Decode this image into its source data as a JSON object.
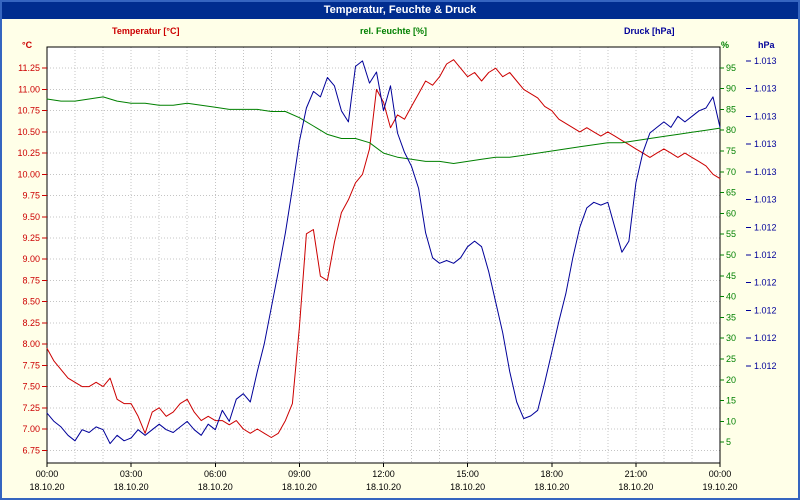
{
  "window": {
    "title": "Temperatur, Feuchte & Druck"
  },
  "colors": {
    "temperature": "#cc0000",
    "humidity": "#008000",
    "pressure": "#000099",
    "background": "#ffffe8",
    "titlebar": "#002d8f",
    "frame": "#3565c0",
    "grid": "#c4c4c4",
    "plot_border": "#000000",
    "axis_text": "#000000"
  },
  "chart_data": {
    "type": "line",
    "title": "Temperatur, Feuchte & Druck",
    "x_axis": {
      "span_hours": 24,
      "ticks": [
        {
          "t": 0,
          "time": "00:00",
          "date": "18.10.20"
        },
        {
          "t": 3,
          "time": "03:00",
          "date": "18.10.20"
        },
        {
          "t": 6,
          "time": "06:00",
          "date": "18.10.20"
        },
        {
          "t": 9,
          "time": "09:00",
          "date": "18.10.20"
        },
        {
          "t": 12,
          "time": "12:00",
          "date": "18.10.20"
        },
        {
          "t": 15,
          "time": "15:00",
          "date": "18.10.20"
        },
        {
          "t": 18,
          "time": "18:00",
          "date": "18.10.20"
        },
        {
          "t": 21,
          "time": "21:00",
          "date": "18.10.20"
        },
        {
          "t": 24,
          "time": "00:00",
          "date": "19.10.20"
        }
      ]
    },
    "axes": {
      "temperature": {
        "unit": "°C",
        "color": "#cc0000",
        "min": 6.6,
        "max": 11.5,
        "tick_labels": [
          "11.25",
          "11.00",
          "10.75",
          "10.50",
          "10.25",
          "10.00",
          "9.75",
          "9.50",
          "9.25",
          "9.00",
          "8.75",
          "8.50",
          "8.25",
          "8.00",
          "7.75",
          "7.50",
          "7.25",
          "7.00",
          "6.75"
        ]
      },
      "humidity": {
        "unit": "%",
        "color": "#008000",
        "min": 0,
        "max": 100,
        "tick_labels": [
          "95",
          "90",
          "85",
          "80",
          "75",
          "70",
          "65",
          "60",
          "55",
          "50",
          "45",
          "40",
          "35",
          "30",
          "25",
          "20",
          "15",
          "10",
          "5"
        ]
      },
      "pressure": {
        "unit": "hPa",
        "color": "#000099",
        "min": 1012.0,
        "max": 1013.5,
        "ticks": [
          {
            "value": 1013.45,
            "label": "1.013"
          },
          {
            "value": 1013.35,
            "label": "1.013"
          },
          {
            "value": 1013.25,
            "label": "1.013"
          },
          {
            "value": 1013.15,
            "label": "1.013"
          },
          {
            "value": 1013.05,
            "label": "1.013"
          },
          {
            "value": 1012.95,
            "label": "1.013"
          },
          {
            "value": 1012.85,
            "label": "1.012"
          },
          {
            "value": 1012.75,
            "label": "1.012"
          },
          {
            "value": 1012.65,
            "label": "1.012"
          },
          {
            "value": 1012.55,
            "label": "1.012"
          },
          {
            "value": 1012.45,
            "label": "1.012"
          },
          {
            "value": 1012.35,
            "label": "1.012"
          }
        ]
      }
    },
    "series": [
      {
        "id": "temperature",
        "name": "Temperatur [°C]",
        "axis": "temperature",
        "color": "#cc0000",
        "t_start": 0,
        "t_step": 0.25,
        "values": [
          7.95,
          7.8,
          7.7,
          7.6,
          7.55,
          7.5,
          7.5,
          7.55,
          7.5,
          7.6,
          7.35,
          7.3,
          7.3,
          7.15,
          6.95,
          7.2,
          7.25,
          7.15,
          7.2,
          7.3,
          7.35,
          7.2,
          7.1,
          7.15,
          7.1,
          7.1,
          7.05,
          7.1,
          7.0,
          6.95,
          7.0,
          6.95,
          6.9,
          6.95,
          7.1,
          7.3,
          8.2,
          9.3,
          9.35,
          8.8,
          8.75,
          9.2,
          9.55,
          9.7,
          9.9,
          10.0,
          10.3,
          11.0,
          10.85,
          10.55,
          10.7,
          10.65,
          10.8,
          10.95,
          11.1,
          11.05,
          11.15,
          11.3,
          11.35,
          11.25,
          11.15,
          11.2,
          11.1,
          11.2,
          11.25,
          11.15,
          11.2,
          11.1,
          11.0,
          10.95,
          10.9,
          10.8,
          10.75,
          10.65,
          10.6,
          10.55,
          10.5,
          10.55,
          10.5,
          10.45,
          10.5,
          10.45,
          10.4,
          10.35,
          10.3,
          10.25,
          10.2,
          10.25,
          10.3,
          10.25,
          10.2,
          10.25,
          10.2,
          10.15,
          10.1,
          10.0,
          9.95
        ]
      },
      {
        "id": "humidity",
        "name": "rel. Feuchte [%]",
        "axis": "humidity",
        "color": "#008000",
        "t_start": 0,
        "t_step": 0.5,
        "values": [
          87.5,
          87,
          87,
          87.5,
          88,
          87,
          86.5,
          86.5,
          86,
          86,
          86.5,
          86,
          85.5,
          85,
          85,
          85,
          84.5,
          84.5,
          83,
          81,
          79,
          78,
          78,
          77,
          74.5,
          73.5,
          73,
          72.5,
          72.5,
          72,
          72.5,
          73,
          73.5,
          73.5,
          74,
          74.5,
          75,
          75.5,
          76,
          76.5,
          77,
          77,
          77.5,
          78,
          78.5,
          79,
          79.5,
          80,
          80.5
        ]
      },
      {
        "id": "pressure",
        "name": "Druck [hPa]",
        "axis": "pressure",
        "color": "#000099",
        "t_start": 0,
        "t_step": 0.25,
        "values": [
          1012.18,
          1012.15,
          1012.13,
          1012.1,
          1012.08,
          1012.12,
          1012.11,
          1012.13,
          1012.12,
          1012.07,
          1012.1,
          1012.08,
          1012.09,
          1012.12,
          1012.1,
          1012.12,
          1012.14,
          1012.12,
          1012.11,
          1012.13,
          1012.15,
          1012.12,
          1012.1,
          1012.14,
          1012.12,
          1012.19,
          1012.15,
          1012.23,
          1012.25,
          1012.22,
          1012.33,
          1012.43,
          1012.56,
          1012.69,
          1012.83,
          1012.99,
          1013.16,
          1013.28,
          1013.34,
          1013.32,
          1013.39,
          1013.36,
          1013.27,
          1013.23,
          1013.43,
          1013.45,
          1013.37,
          1013.41,
          1013.27,
          1013.36,
          1013.19,
          1013.12,
          1013.07,
          1012.99,
          1012.83,
          1012.74,
          1012.72,
          1012.73,
          1012.72,
          1012.74,
          1012.78,
          1012.8,
          1012.78,
          1012.69,
          1012.58,
          1012.47,
          1012.33,
          1012.22,
          1012.16,
          1012.17,
          1012.19,
          1012.29,
          1012.4,
          1012.51,
          1012.61,
          1012.74,
          1012.85,
          1012.92,
          1012.94,
          1012.93,
          1012.94,
          1012.85,
          1012.76,
          1012.8,
          1013.01,
          1013.12,
          1013.19,
          1013.21,
          1013.23,
          1013.21,
          1013.25,
          1013.23,
          1013.25,
          1013.27,
          1013.28,
          1013.32,
          1013.21
        ]
      }
    ]
  }
}
